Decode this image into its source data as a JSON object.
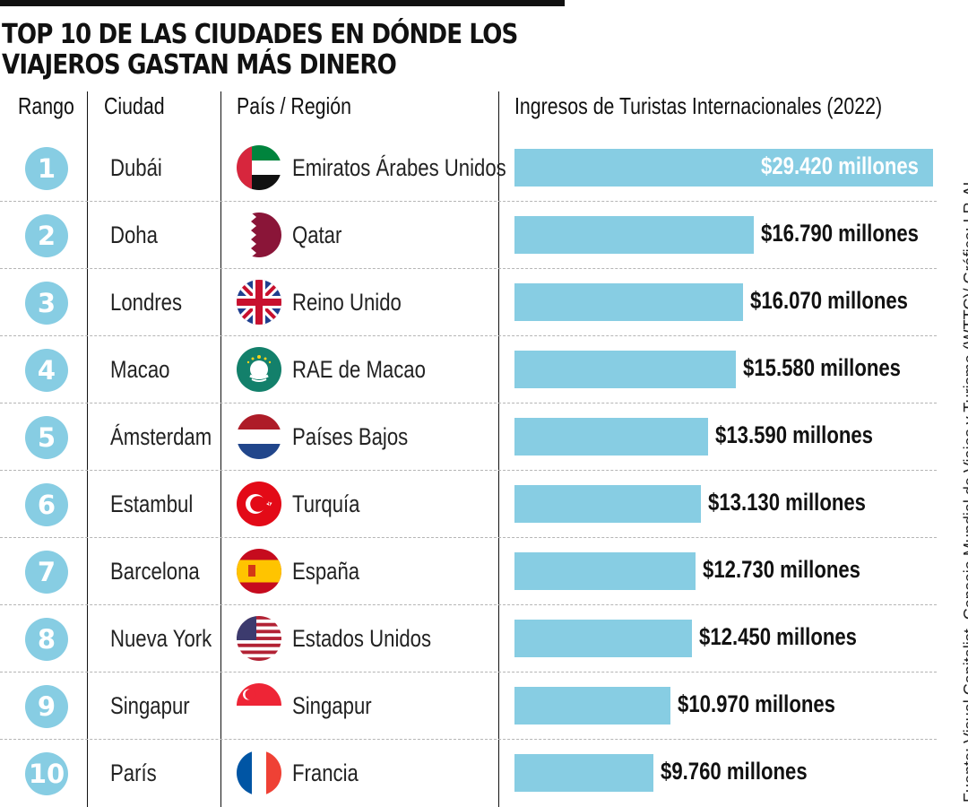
{
  "title_lines": [
    "TOP 10 DE LAS CIUDADES EN DÓNDE LOS",
    "VIAJEROS GASTAN MÁS DINERO"
  ],
  "headers": {
    "rank": "Rango",
    "city": "Ciudad",
    "country": "País / Región",
    "value": "Ingresos de Turistas Internacionales (2022)"
  },
  "source": "Fuente: Visual Capitalist, Consejo Mundial de Viajes y Turismo (WTTC)/ Gráfico: LR-AL",
  "colors": {
    "bar": "#87cde3",
    "rank_circle": "#87cde3",
    "text": "#111111"
  },
  "chart_data": {
    "type": "bar",
    "orientation": "horizontal",
    "title": "TOP 10 DE LAS CIUDADES EN DÓNDE LOS VIAJEROS GASTAN MÁS DINERO",
    "xlabel": "Ingresos de Turistas Internacionales (2022)",
    "xlim": [
      0,
      29420
    ],
    "grid": false,
    "rows": [
      {
        "rank": "1",
        "city": "Dubái",
        "country": "Emiratos Árabes Unidos",
        "flag": "uae-flag-icon",
        "value": 29420,
        "label": "$29.420 millones"
      },
      {
        "rank": "2",
        "city": "Doha",
        "country": "Qatar",
        "flag": "qatar-flag-icon",
        "value": 16790,
        "label": "$16.790 millones"
      },
      {
        "rank": "3",
        "city": "Londres",
        "country": "Reino Unido",
        "flag": "uk-flag-icon",
        "value": 16070,
        "label": "$16.070 millones"
      },
      {
        "rank": "4",
        "city": "Macao",
        "country": "RAE de Macao",
        "flag": "macao-flag-icon",
        "value": 15580,
        "label": "$15.580 millones"
      },
      {
        "rank": "5",
        "city": "Ámsterdam",
        "country": "Países Bajos",
        "flag": "netherlands-flag-icon",
        "value": 13590,
        "label": "$13.590 millones"
      },
      {
        "rank": "6",
        "city": "Estambul",
        "country": "Turquía",
        "flag": "turkey-flag-icon",
        "value": 13130,
        "label": "$13.130 millones"
      },
      {
        "rank": "7",
        "city": "Barcelona",
        "country": "España",
        "flag": "spain-flag-icon",
        "value": 12730,
        "label": "$12.730 millones"
      },
      {
        "rank": "8",
        "city": "Nueva York",
        "country": "Estados Unidos",
        "flag": "usa-flag-icon",
        "value": 12450,
        "label": "$12.450 millones"
      },
      {
        "rank": "9",
        "city": "Singapur",
        "country": "Singapur",
        "flag": "singapore-flag-icon",
        "value": 10970,
        "label": "$10.970 millones"
      },
      {
        "rank": "10",
        "city": "París",
        "country": "Francia",
        "flag": "france-flag-icon",
        "value": 9760,
        "label": "$9.760 millones"
      }
    ]
  }
}
